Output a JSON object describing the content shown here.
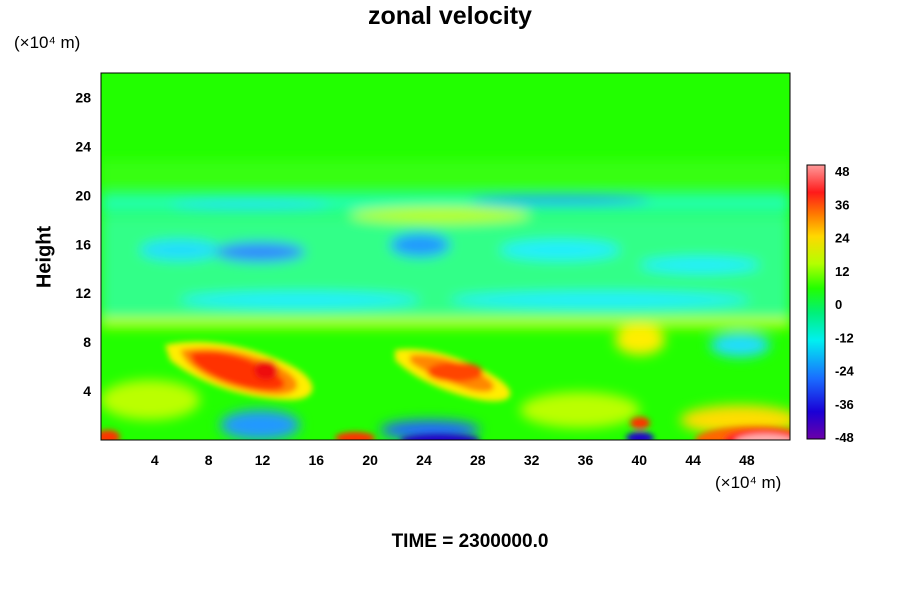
{
  "chart_data": {
    "type": "heatmap",
    "title": "zonal velocity",
    "xlabel": "",
    "ylabel": "Height",
    "x_unit": "(×10⁴ m)",
    "y_unit": "(×10⁴ m)",
    "footer": "TIME = 2300000.0",
    "xlim": [
      0,
      51.2
    ],
    "ylim": [
      0,
      30
    ],
    "xticks": [
      "4",
      "8",
      "12",
      "16",
      "20",
      "24",
      "28",
      "32",
      "36",
      "40",
      "44",
      "48"
    ],
    "yticks": [
      "4",
      "8",
      "12",
      "16",
      "20",
      "24",
      "28"
    ],
    "colorbar": {
      "min": -48,
      "max": 48,
      "ticks": [
        "48",
        "36",
        "24",
        "12",
        "0",
        "-12",
        "-24",
        "-36",
        "-48"
      ],
      "colormap": "rainbow (purple → blue → cyan → green → yellow → red → pink)"
    },
    "features": [
      {
        "desc": "positive jet",
        "x": [
          6,
          16
        ],
        "y": [
          3,
          8
        ],
        "value": 40
      },
      {
        "desc": "positive lobe",
        "x": [
          22,
          30
        ],
        "y": [
          3,
          8
        ],
        "value": 28
      },
      {
        "desc": "strong positive near surface",
        "x": [
          46,
          51
        ],
        "y": [
          0,
          1.5
        ],
        "value": 48
      },
      {
        "desc": "negative cells",
        "x": [
          0,
          51
        ],
        "y": [
          10,
          20
        ],
        "value": -20
      },
      {
        "desc": "near-zero upper layer",
        "x": [
          0,
          51
        ],
        "y": [
          20,
          30
        ],
        "value": 0
      }
    ]
  },
  "colors": {
    "background": "#ffffff",
    "field_base": "#22ff00",
    "axes": "#000000"
  }
}
